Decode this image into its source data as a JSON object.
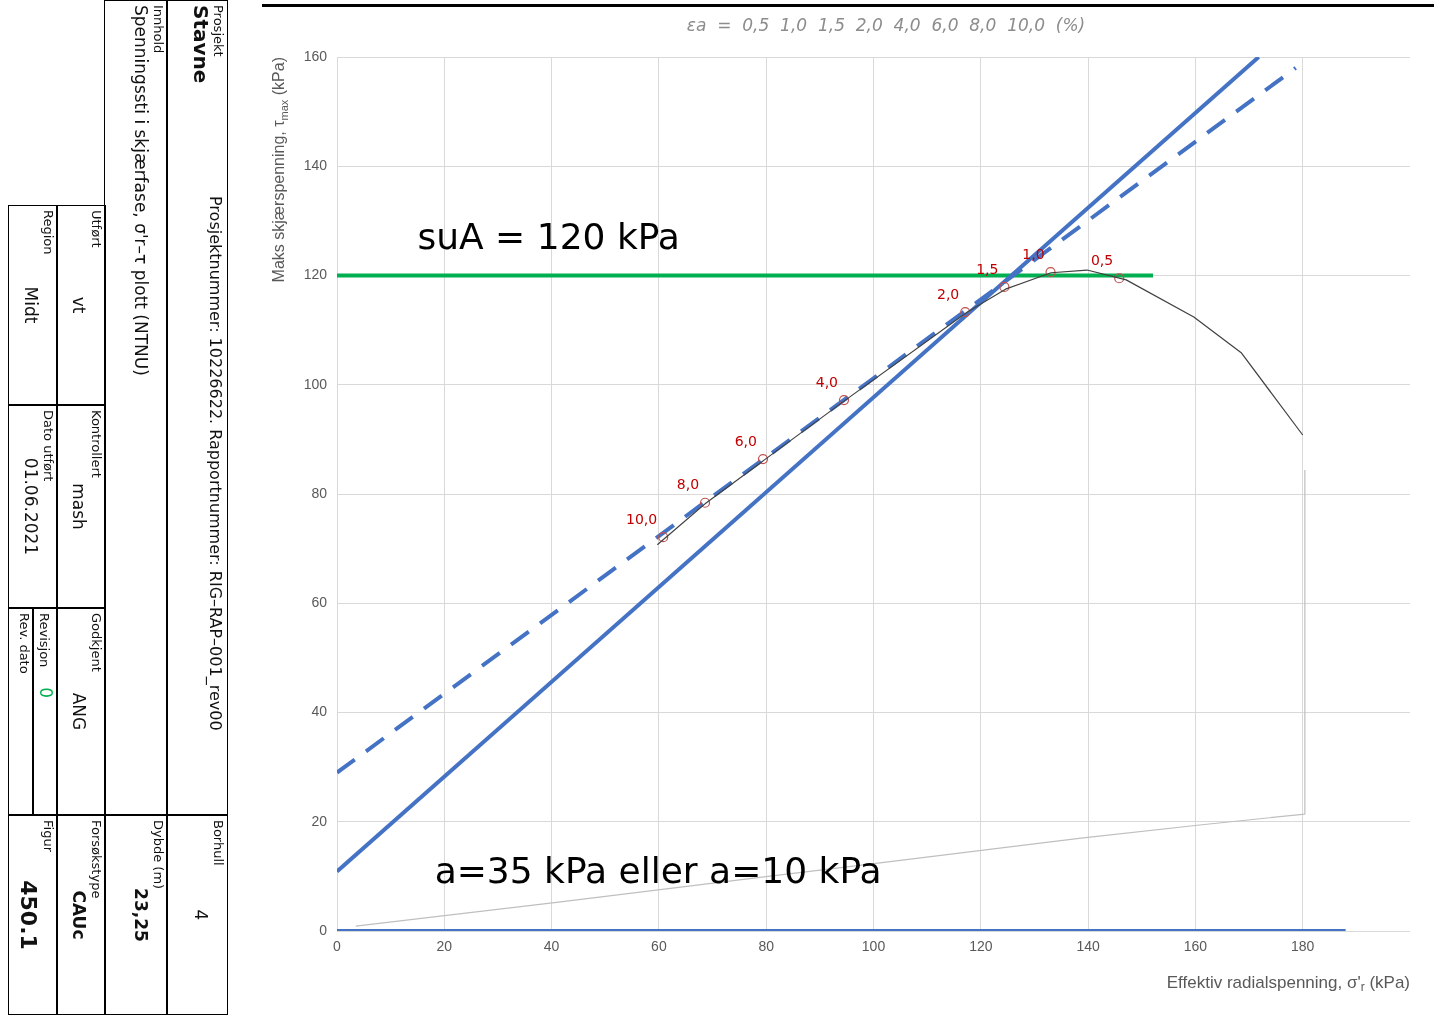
{
  "chart_data": {
    "type": "line",
    "subtitle": "εa  =  0,5  1,0  1,5  2,0  4,0  6,0  8,0  10,0  (%)",
    "xlabel": "Effektiv radialspenning, σ'$_{r}$ (kPa)",
    "ylabel": "Maks skjærspenning, τ$_{max}$ (kPa)",
    "xlim": [
      0,
      200
    ],
    "xticks": [
      0,
      20,
      40,
      60,
      80,
      100,
      120,
      140,
      160,
      180
    ],
    "ylim": [
      0,
      160
    ],
    "yticks": [
      0,
      20,
      40,
      60,
      80,
      100,
      120,
      140,
      160
    ],
    "grid": true,
    "legend": false,
    "series": [
      {
        "type": "line",
        "color": "#bfbfbf",
        "marker": "none",
        "line_style": "solid",
        "x": [
          3.5,
          41.3,
          99.7,
          138.7,
          160.8,
          180.4,
          180.4
        ],
        "values": [
          0.9,
          5.3,
          12.3,
          17,
          19.4,
          21.4,
          84.4
        ]
      },
      {
        "type": "line",
        "color": "#404040",
        "marker": "none",
        "line_style": "solid",
        "x": [
          180,
          168.6,
          159.7,
          147.1,
          139.8,
          133.1,
          124.6,
          117.5,
          94.5,
          79.6,
          68.6,
          59.7
        ],
        "values": [
          90.8,
          105.8,
          112.4,
          119.2,
          121,
          120.5,
          117.5,
          113.3,
          97,
          86.2,
          78.2,
          70.7
        ]
      },
      {
        "type": "scatter",
        "color": "#c0504d",
        "marker": "circle",
        "x": [
          145.8,
          133,
          124.4,
          117.1,
          94.5,
          79.4,
          68.6,
          60.8
        ],
        "values": [
          119.5,
          120.6,
          117.9,
          113.3,
          97.2,
          86.4,
          78.4,
          72.1
        ]
      },
      {
        "type": "line",
        "color": "#4472c4",
        "marker": "none",
        "line_style": "solid",
        "x": [
          0,
          171.8
        ],
        "values": [
          10.9,
          160
        ]
      },
      {
        "type": "line",
        "color": "#4472c4",
        "marker": "none",
        "line_style": "dashed",
        "x": [
          0,
          178.7
        ],
        "values": [
          29,
          158
        ]
      },
      {
        "type": "line",
        "color": "#00b050",
        "marker": "none",
        "line_style": "solid",
        "x": [
          0,
          152.1
        ],
        "values": [
          120,
          120
        ]
      },
      {
        "type": "line",
        "color": "#4472c4",
        "marker": "none",
        "line_style": "solid",
        "x": [
          0,
          188
        ],
        "values": [
          0,
          0
        ]
      }
    ],
    "annotations": [
      {
        "text": "suA = 120 kPa",
        "x": 15,
        "y": 120
      },
      "a=35 kPa eller a=10 kPa",
      {
        "text": "0,5",
        "x": 145.8,
        "y": 119.5
      },
      {
        "text": "1,0",
        "x": 133,
        "y": 120.6
      },
      {
        "text": "1,5",
        "x": 124.4,
        "y": 117.9
      },
      {
        "text": "2,0",
        "x": 117.1,
        "y": 113.3
      },
      {
        "text": "4,0",
        "x": 94.5,
        "y": 97.2
      },
      {
        "text": "6,0",
        "x": 79.4,
        "y": 86.4
      },
      {
        "text": "8,0",
        "x": 68.6,
        "y": 78.4
      },
      {
        "text": "10,0",
        "x": 60.8,
        "y": 72.1
      },
      "Prosjekt",
      "Stavne",
      "Prosjektnummer: 10226622.  Rapportnummer: RIG–RAP–001_rev00",
      "Borhull",
      "4",
      "Innhold",
      "Spenningssti i skjærfase, σ'r–τ plott (NTNU)",
      "Dybde (m)",
      "23,25",
      "Utført",
      "vt",
      "Kontrollert",
      "mash",
      "Godkjent",
      "ANG",
      "Forsøkstype",
      "CAUc",
      "Region",
      "Midt",
      "Dato utført",
      "01.06.2021",
      "Revisjon",
      "0",
      "Rev. dato",
      "Figur",
      "450.1"
    ]
  }
}
